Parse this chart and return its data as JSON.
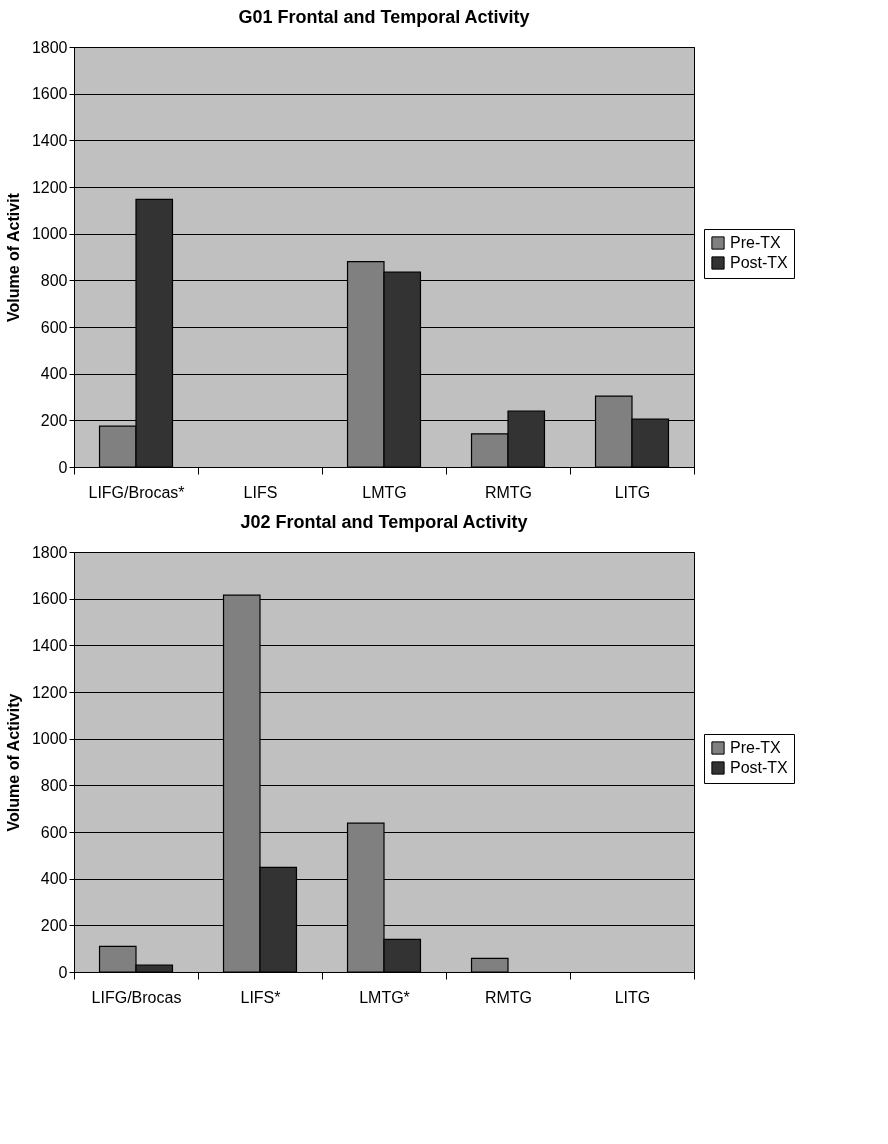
{
  "chart_data": [
    {
      "type": "bar",
      "title": "G01 Frontal and Temporal Activity",
      "ylabel": "Volume of Activit",
      "categories": [
        "LIFG/Brocas*",
        "LIFS",
        "LMTG",
        "RMTG",
        "LITG"
      ],
      "series": [
        {
          "name": "Pre-TX",
          "color": "#808080",
          "values": [
            175,
            null,
            880,
            142,
            304
          ]
        },
        {
          "name": "Post-TX",
          "color": "#333333",
          "values": [
            1147,
            null,
            835,
            240,
            205
          ]
        }
      ],
      "ylim": [
        0,
        1800
      ],
      "yticks": [
        0,
        200,
        400,
        600,
        800,
        1000,
        1200,
        1400,
        1600,
        1800
      ],
      "grid": "y",
      "legend": "right"
    },
    {
      "type": "bar",
      "title": "J02 Frontal and Temporal Activity",
      "ylabel": "Volume of Activity",
      "categories": [
        "LIFG/Brocas",
        "LIFS*",
        "LMTG*",
        "RMTG",
        "LITG"
      ],
      "series": [
        {
          "name": "Pre-TX",
          "color": "#808080",
          "values": [
            110,
            1615,
            638,
            58,
            null
          ]
        },
        {
          "name": "Post-TX",
          "color": "#333333",
          "values": [
            30,
            448,
            140,
            null,
            null
          ]
        }
      ],
      "ylim": [
        0,
        1800
      ],
      "yticks": [
        0,
        200,
        400,
        600,
        800,
        1000,
        1200,
        1400,
        1600,
        1800
      ],
      "grid": "y",
      "legend": "right"
    }
  ]
}
